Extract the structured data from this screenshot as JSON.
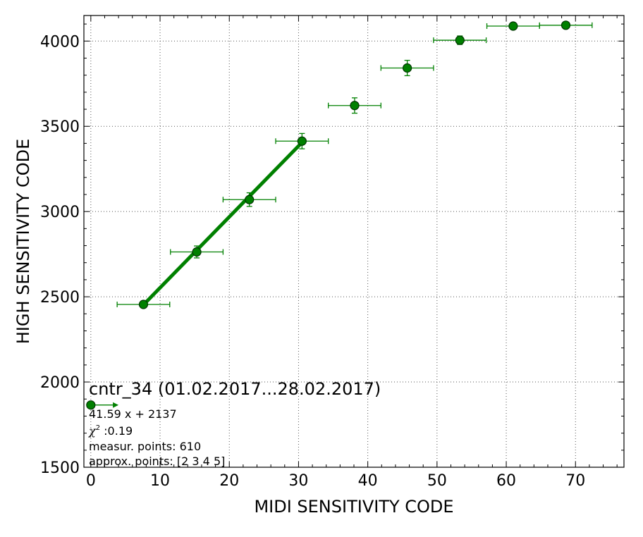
{
  "chart_data": {
    "type": "scatter",
    "xlabel": "MIDI SENSITIVITY CODE",
    "ylabel": "HIGH SENSITIVITY CODE",
    "xlim": [
      -1,
      77
    ],
    "ylim": [
      1500,
      4150
    ],
    "x_ticks": [
      0,
      10,
      20,
      30,
      40,
      50,
      60,
      70
    ],
    "y_ticks": [
      1500,
      2000,
      2500,
      3000,
      3500,
      4000
    ],
    "x_minor_step": 2,
    "y_minor_step": 100,
    "grid": true,
    "colors": {
      "series": "#008000",
      "marker_fill": "#008000",
      "marker_edge": "#003300",
      "fit": "#008000"
    },
    "points": [
      {
        "x": 7.6,
        "y": 2455,
        "xerr": 3.8,
        "yerr": 15
      },
      {
        "x": 15.3,
        "y": 2763,
        "xerr": 3.8,
        "yerr": 35
      },
      {
        "x": 22.9,
        "y": 3070,
        "xerr": 3.8,
        "yerr": 40
      },
      {
        "x": 30.5,
        "y": 3413,
        "xerr": 3.8,
        "yerr": 45
      },
      {
        "x": 38.1,
        "y": 3622,
        "xerr": 3.8,
        "yerr": 45
      },
      {
        "x": 45.7,
        "y": 3842,
        "xerr": 3.8,
        "yerr": 45
      },
      {
        "x": 53.3,
        "y": 4005,
        "xerr": 3.8,
        "yerr": 25
      },
      {
        "x": 61.0,
        "y": 4088,
        "xerr": 3.8,
        "yerr": 8
      },
      {
        "x": 68.6,
        "y": 4093,
        "xerr": 3.8,
        "yerr": 8
      }
    ],
    "fit": {
      "x_start": 7.6,
      "x_end": 30.5,
      "slope": 41.59,
      "intercept": 2137
    },
    "legend_marker": {
      "x": 0,
      "y": 1865,
      "xerr_plus": 4
    },
    "annotation": {
      "title": "cntr_34 (01.02.2017...28.02.2017)",
      "equation": "41.59 x + 2137",
      "chi_symbol": "χ",
      "chi_sup": "2",
      "chi_value": " :0.19",
      "measur_points": "measur. points: 610",
      "approx_points": "approx. points: [2 3 4 5]"
    }
  }
}
